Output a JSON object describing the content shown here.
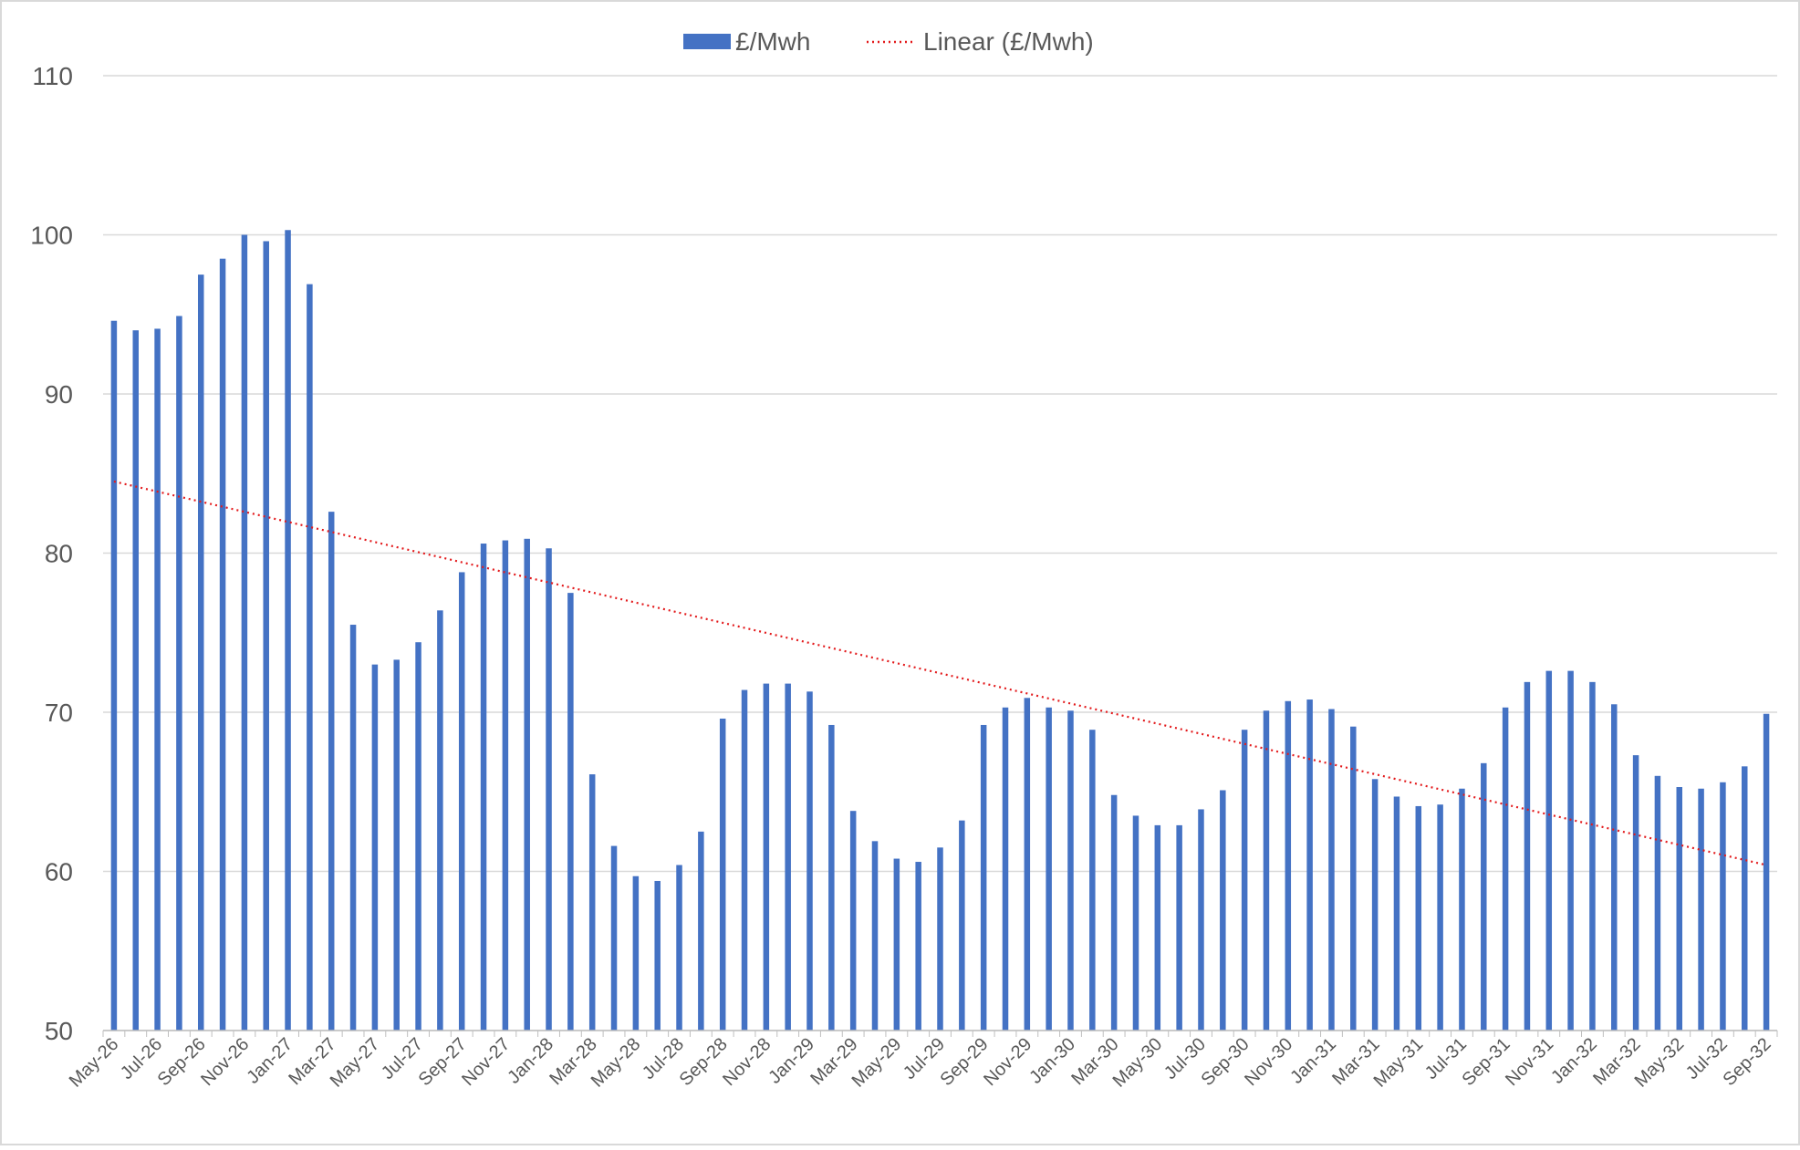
{
  "chart_data": {
    "type": "bar",
    "title": "",
    "xlabel": "",
    "ylabel": "",
    "ylim": [
      50,
      110
    ],
    "yticks": [
      50,
      60,
      70,
      80,
      90,
      100,
      110
    ],
    "grid": true,
    "legend_position": "top",
    "legend": [
      {
        "label": "£/Mwh",
        "kind": "bar"
      },
      {
        "label": "Linear (£/Mwh)",
        "kind": "dotted-line"
      }
    ],
    "colors": {
      "bar": "#4472C4",
      "trend": "#E31A1C",
      "grid": "#D9D9D9",
      "text": "#595959"
    },
    "series": [
      {
        "name": "£/Mwh",
        "values": [
          94.6,
          94.0,
          94.1,
          94.9,
          97.5,
          98.5,
          100.0,
          99.6,
          100.3,
          96.9,
          82.6,
          75.5,
          73.0,
          73.3,
          74.4,
          76.4,
          78.8,
          80.6,
          80.8,
          80.9,
          80.3,
          77.5,
          66.1,
          61.6,
          59.7,
          59.4,
          60.4,
          62.5,
          69.6,
          71.4,
          71.8,
          71.8,
          71.3,
          69.2,
          63.8,
          61.9,
          60.8,
          60.6,
          61.5,
          63.2,
          69.2,
          70.3,
          70.9,
          70.3,
          70.1,
          68.9,
          64.8,
          63.5,
          62.9,
          62.9,
          63.9,
          65.1,
          68.9,
          70.1,
          70.7,
          70.8,
          70.2,
          69.1,
          65.8,
          64.7,
          64.1,
          64.2,
          65.2,
          66.8,
          70.3,
          71.9,
          72.6,
          72.6,
          71.9,
          70.5,
          67.3,
          66.0,
          65.3,
          65.2,
          65.6,
          66.6,
          69.9
        ]
      }
    ],
    "trend": {
      "name": "Linear (£/Mwh)",
      "start": 84.5,
      "end": 60.4
    },
    "xtick_labels": [
      "May-26",
      "Jul-26",
      "Sep-26",
      "Nov-26",
      "Jan-27",
      "Mar-27",
      "May-27",
      "Jul-27",
      "Sep-27",
      "Nov-27",
      "Jan-28",
      "Mar-28",
      "May-28",
      "Jul-28",
      "Sep-28",
      "Nov-28",
      "Jan-29",
      "Mar-29",
      "May-29",
      "Jul-29",
      "Sep-29",
      "Nov-29",
      "Jan-30",
      "Mar-30",
      "May-30",
      "Jul-30",
      "Sep-30",
      "Nov-30",
      "Jan-31",
      "Mar-31",
      "May-31",
      "Jul-31",
      "Sep-31",
      "Nov-31",
      "Jan-32",
      "Mar-32",
      "May-32",
      "Jul-32",
      "Sep-32"
    ]
  }
}
